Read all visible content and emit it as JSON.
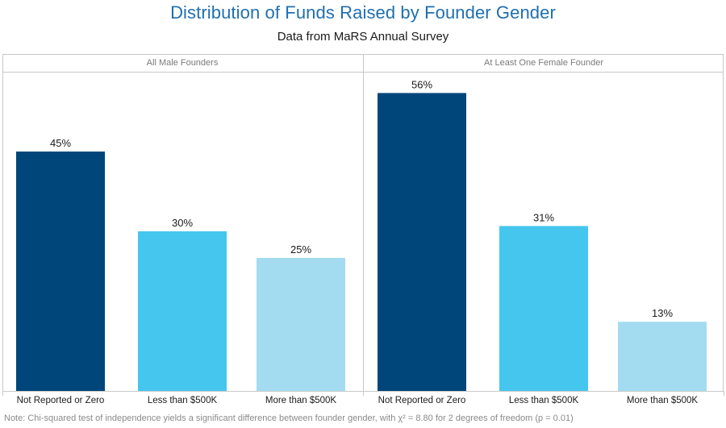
{
  "chart_data": {
    "type": "bar",
    "title": "Distribution of Funds Raised by Founder Gender",
    "subtitle": "Data from MaRS Annual Survey",
    "categories": [
      "Not Reported or Zero",
      "Less than $500K",
      "More than $500K"
    ],
    "category_colors": [
      "#00467a",
      "#45c6ee",
      "#a3dcf0"
    ],
    "ylim": [
      0,
      60
    ],
    "panels": [
      {
        "name": "All Male Founders",
        "values": [
          45,
          30,
          25
        ],
        "labels": [
          "45%",
          "30%",
          "25%"
        ]
      },
      {
        "name": "At Least One Female Founder",
        "values": [
          56,
          31,
          13
        ],
        "labels": [
          "56%",
          "31%",
          "13%"
        ]
      }
    ],
    "note": "Note: Chi-squared test of independence yields a significant difference between founder gender, with χ² = 8.80 for 2 degrees of freedom (p = 0.01)"
  }
}
